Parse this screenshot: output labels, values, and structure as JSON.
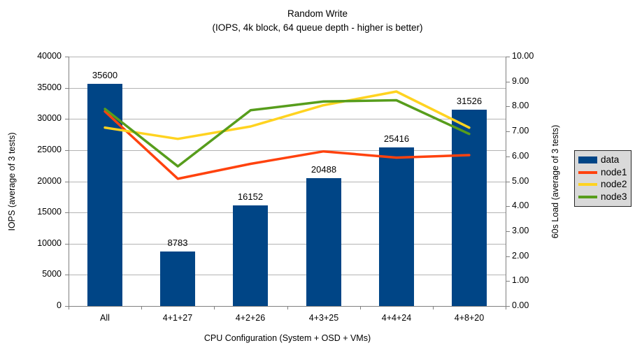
{
  "chart_data": {
    "type": "combo",
    "title": "Random Write",
    "subtitle": "(IOPS, 4k block, 64 queue depth - higher is better)",
    "xlabel": "CPU Configuration (System + OSD + VMs)",
    "ylabel_left": "IOPS (average of 3 tests)",
    "ylabel_right": "60s Load (average of 3 tests)",
    "categories": [
      "All",
      "4+1+27",
      "4+2+26",
      "4+3+25",
      "4+4+24",
      "4+8+20"
    ],
    "series": [
      {
        "name": "data",
        "type": "bar",
        "axis": "left",
        "color": "#004586",
        "values": [
          35600,
          8783,
          16152,
          20488,
          25416,
          31526
        ],
        "value_labels": [
          "35600",
          "8783",
          "16152",
          "20488",
          "25416",
          "31526"
        ]
      },
      {
        "name": "node1",
        "type": "line",
        "axis": "right",
        "color": "#FF420E",
        "values": [
          7.8,
          5.1,
          5.7,
          6.2,
          5.95,
          6.05
        ]
      },
      {
        "name": "node2",
        "type": "line",
        "axis": "right",
        "color": "#FFD320",
        "values": [
          7.15,
          6.7,
          7.2,
          8.05,
          8.6,
          7.15
        ]
      },
      {
        "name": "node3",
        "type": "line",
        "axis": "right",
        "color": "#579D1C",
        "values": [
          7.9,
          5.6,
          7.85,
          8.2,
          8.25,
          6.9
        ]
      }
    ],
    "left_axis": {
      "min": 0,
      "max": 40000,
      "step": 5000,
      "ticks": [
        "0",
        "5000",
        "10000",
        "15000",
        "20000",
        "25000",
        "30000",
        "35000",
        "40000"
      ]
    },
    "right_axis": {
      "min": 0,
      "max": 10,
      "step": 1,
      "ticks": [
        "0.00",
        "1.00",
        "2.00",
        "3.00",
        "4.00",
        "5.00",
        "6.00",
        "7.00",
        "8.00",
        "9.00",
        "10.00"
      ]
    },
    "grid": "horizontal",
    "legend": {
      "position": "right",
      "items": [
        {
          "label": "data",
          "swatch": "bar",
          "color": "#004586"
        },
        {
          "label": "node1",
          "swatch": "line",
          "color": "#FF420E"
        },
        {
          "label": "node2",
          "swatch": "line",
          "color": "#FFD320"
        },
        {
          "label": "node3",
          "swatch": "line",
          "color": "#579D1C"
        }
      ]
    },
    "colors": {
      "gridline": "#b3b3b3",
      "axis": "#808080",
      "legend_bg": "#d9d9d9",
      "legend_border": "#262626"
    }
  }
}
